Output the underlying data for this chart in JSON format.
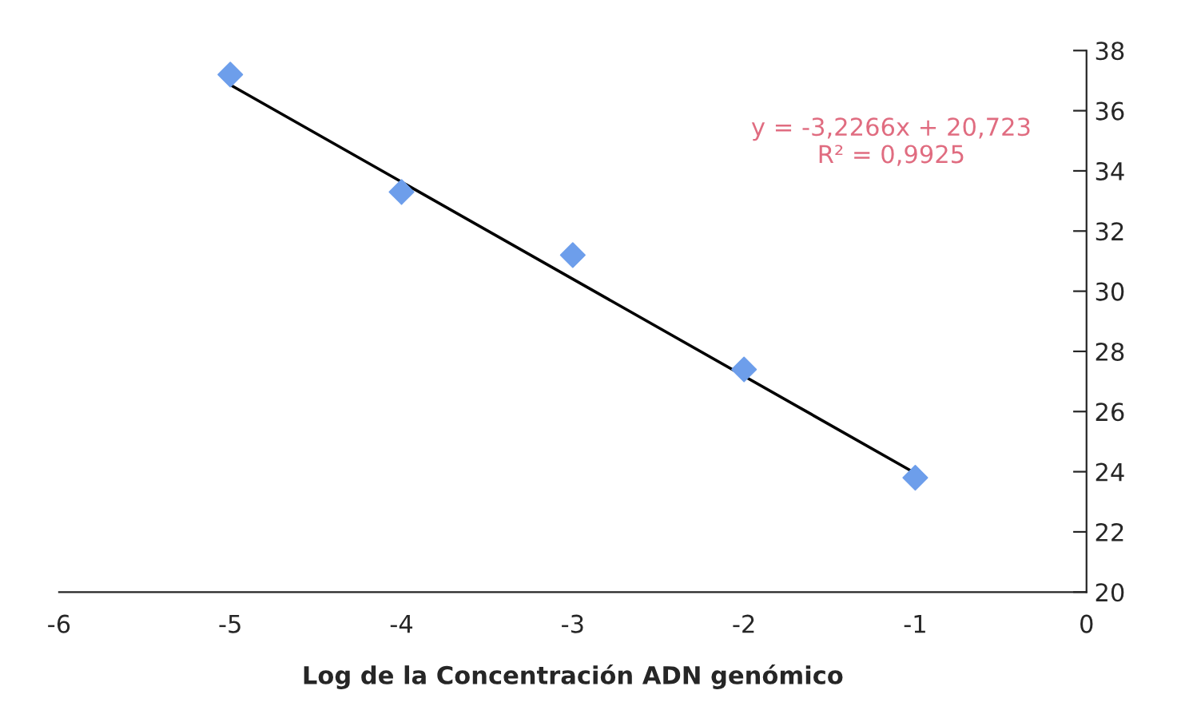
{
  "chart_data": {
    "type": "scatter",
    "xlabel": "Log de la Concentración ADN genómico",
    "series": [
      {
        "color": "#6d9eeb",
        "marker": "diamond",
        "x": [
          -5,
          -4,
          -3,
          -2,
          -1
        ],
        "values": [
          37.2,
          33.3,
          31.2,
          27.4,
          23.8
        ]
      },
      {
        "type": "line",
        "color": "#000000",
        "marker": "none",
        "x": [
          -5,
          -1
        ],
        "values": [
          36.86,
          23.95
        ]
      }
    ],
    "annotations": [
      "y = -3,2266x + 20,723\nR² = 0,9925"
    ],
    "xlim": [
      -6,
      0
    ],
    "xticks": [
      -6,
      -5,
      -4,
      -3,
      -2,
      -1,
      0
    ],
    "ylim": [
      20,
      38
    ],
    "yticks": [
      20,
      22,
      24,
      26,
      28,
      30,
      32,
      34,
      36,
      38
    ],
    "grid": false,
    "legend": false
  }
}
